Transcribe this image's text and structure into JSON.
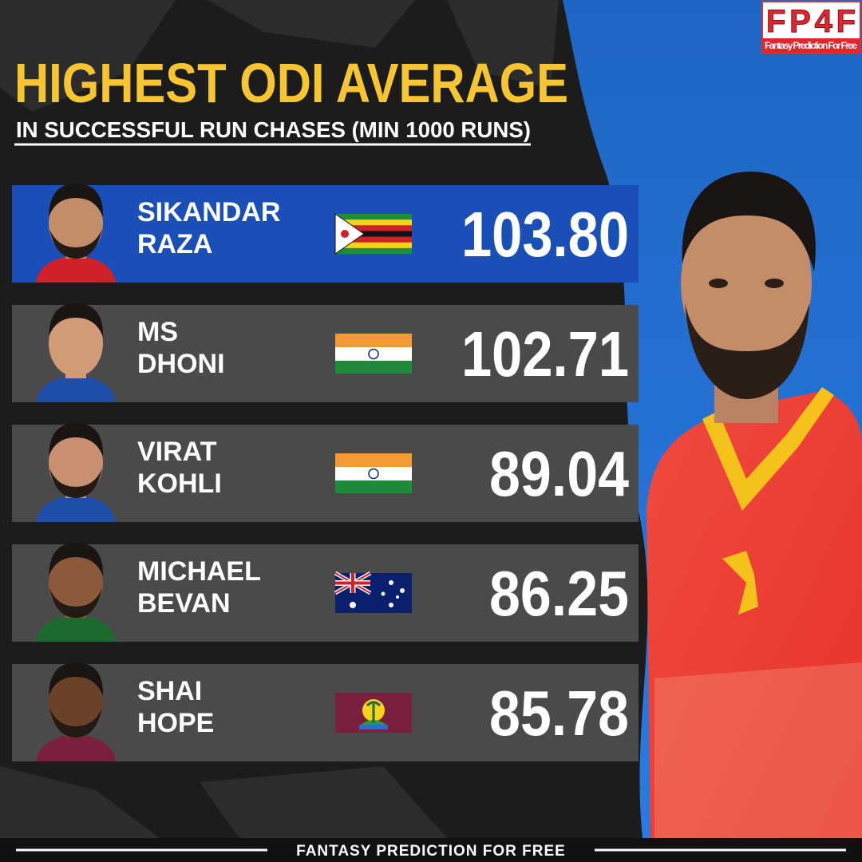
{
  "logo": {
    "text": "FP4F",
    "tagline": "Fantasy Prediction For Free"
  },
  "header": {
    "title": "HIGHEST ODI AVERAGE",
    "subtitle": "IN SUCCESSFUL RUN CHASES (MIN 1000 RUNS)"
  },
  "rows": [
    {
      "name": [
        "SIKANDAR",
        "RAZA"
      ],
      "value": "103.80"
    },
    {
      "name": [
        "MS",
        "DHONI"
      ],
      "value": "102.71"
    },
    {
      "name": [
        "VIRAT",
        "KOHLI"
      ],
      "value": "89.04"
    },
    {
      "name": [
        "MICHAEL",
        "BEVAN"
      ],
      "value": "86.25"
    },
    {
      "name": [
        "SHAI",
        "HOPE"
      ],
      "value": "85.78"
    }
  ],
  "footer": {
    "text": "FANTASY PREDICTION FOR FREE"
  }
}
